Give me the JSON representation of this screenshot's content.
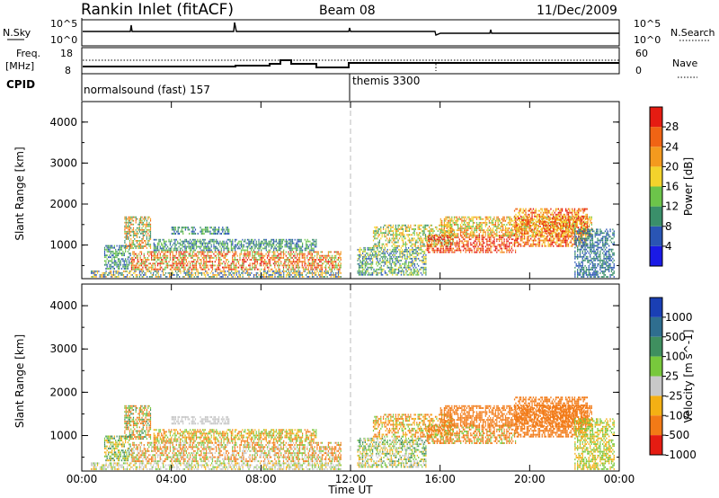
{
  "header": {
    "station": "Rankin Inlet (fitACF)",
    "beam": "Beam 08",
    "date": "11/Dec/2009"
  },
  "noise_panel": {
    "left_label": "N.Sky",
    "right_label": "N.Search",
    "left_ticks": [
      "10^5",
      "10^0"
    ],
    "right_ticks": [
      "10^5",
      "10^0"
    ]
  },
  "freq_panel": {
    "left_label_1": "Freq.",
    "left_label_2": "[MHz]",
    "right_label": "Nave",
    "left_ticks": [
      "18",
      "8"
    ],
    "right_ticks": [
      "60",
      "0"
    ]
  },
  "cpid_panel": {
    "label": "CPID",
    "programs": [
      "normalsound (fast) 157",
      "themis 3300"
    ]
  },
  "x_axis": {
    "label": "Time UT",
    "ticks": [
      "00:00",
      "04:00",
      "08:00",
      "12:00",
      "16:00",
      "20:00",
      "00:00"
    ]
  },
  "chart_data": [
    {
      "type": "heatmap",
      "title": "",
      "xlabel": "",
      "ylabel": "Slant Range [km]",
      "xlim": [
        0,
        24
      ],
      "ylim": [
        180,
        4500
      ],
      "yticks": [
        "1000",
        "2000",
        "3000",
        "4000"
      ],
      "colorbar_label": "Power [dB]",
      "colorbar_ticks": [
        "4",
        "8",
        "12",
        "16",
        "20",
        "24",
        "28"
      ],
      "colors": [
        "#1a1ae6",
        "#2a55b4",
        "#3a8f6a",
        "#6cc44a",
        "#f3d32c",
        "#f49a1e",
        "#f06414",
        "#e51c12"
      ],
      "levels": [
        0,
        4,
        8,
        12,
        16,
        20,
        24,
        28,
        32
      ],
      "regions": [
        {
          "t0": 0.4,
          "t1": 11.6,
          "r0": 200,
          "r1": 380,
          "values": [
            6,
            10,
            16,
            20
          ]
        },
        {
          "t0": 1.0,
          "t1": 2.2,
          "r0": 400,
          "r1": 1000,
          "values": [
            4,
            8,
            12
          ]
        },
        {
          "t0": 1.9,
          "t1": 3.1,
          "r0": 900,
          "r1": 1700,
          "values": [
            8,
            14,
            20,
            24
          ]
        },
        {
          "t0": 2.2,
          "t1": 11.6,
          "r0": 380,
          "r1": 850,
          "values": [
            14,
            20,
            24,
            28
          ]
        },
        {
          "t0": 3.2,
          "t1": 10.5,
          "r0": 850,
          "r1": 1150,
          "values": [
            4,
            8,
            12
          ]
        },
        {
          "t0": 4.0,
          "t1": 6.6,
          "r0": 1250,
          "r1": 1450,
          "values": [
            4,
            8,
            12
          ]
        },
        {
          "t0": 12.3,
          "t1": 15.4,
          "r0": 250,
          "r1": 950,
          "values": [
            4,
            8,
            12,
            16
          ]
        },
        {
          "t0": 13.0,
          "t1": 16.6,
          "r0": 950,
          "r1": 1500,
          "values": [
            8,
            12,
            16,
            20
          ]
        },
        {
          "t0": 15.4,
          "t1": 19.4,
          "r0": 800,
          "r1": 1250,
          "values": [
            28,
            28,
            24,
            20
          ]
        },
        {
          "t0": 16.0,
          "t1": 22.8,
          "r0": 1200,
          "r1": 1700,
          "values": [
            12,
            16,
            20,
            24
          ]
        },
        {
          "t0": 19.3,
          "t1": 22.6,
          "r0": 950,
          "r1": 1900,
          "values": [
            24,
            28,
            20,
            16
          ]
        },
        {
          "t0": 22.0,
          "t1": 23.8,
          "r0": 200,
          "r1": 1400,
          "values": [
            4,
            8
          ]
        }
      ]
    },
    {
      "type": "heatmap",
      "title": "",
      "xlabel": "Time UT",
      "ylabel": "Slant Range [km]",
      "xlim": [
        0,
        24
      ],
      "ylim": [
        180,
        4500
      ],
      "yticks": [
        "1000",
        "2000",
        "3000",
        "4000"
      ],
      "colorbar_label": "Velocity [m s^-1]",
      "colorbar_ticks": [
        "1000",
        "500",
        "100",
        "25",
        "-25",
        "-100",
        "-500",
        "-1000"
      ],
      "colors": [
        "#1a3fb4",
        "#2f6e8f",
        "#3f8f5f",
        "#78c83c",
        "#c8c8c8",
        "#f4b014",
        "#f27a16",
        "#e51c12"
      ],
      "levels": [
        1500,
        1000,
        500,
        100,
        25,
        -25,
        -100,
        -500,
        -1500
      ],
      "regions": [
        {
          "t0": 0.4,
          "t1": 11.6,
          "r0": 200,
          "r1": 380,
          "values": [
            0,
            10,
            -50,
            50
          ]
        },
        {
          "t0": 1.0,
          "t1": 2.2,
          "r0": 400,
          "r1": 1000,
          "values": [
            150,
            60,
            -40
          ]
        },
        {
          "t0": 1.9,
          "t1": 3.1,
          "r0": 900,
          "r1": 1700,
          "values": [
            -300,
            -150,
            60,
            200
          ]
        },
        {
          "t0": 2.2,
          "t1": 11.6,
          "r0": 380,
          "r1": 850,
          "values": [
            -200,
            -150,
            60,
            0
          ]
        },
        {
          "t0": 3.2,
          "t1": 10.5,
          "r0": 850,
          "r1": 1150,
          "values": [
            -60,
            60,
            -150
          ]
        },
        {
          "t0": 4.0,
          "t1": 6.6,
          "r0": 1250,
          "r1": 1450,
          "values": [
            0,
            10,
            -10
          ]
        },
        {
          "t0": 12.3,
          "t1": 15.4,
          "r0": 250,
          "r1": 950,
          "values": [
            60,
            -60,
            0,
            150
          ]
        },
        {
          "t0": 13.0,
          "t1": 16.6,
          "r0": 950,
          "r1": 1500,
          "values": [
            -150,
            -60,
            60,
            -200
          ]
        },
        {
          "t0": 15.4,
          "t1": 19.4,
          "r0": 800,
          "r1": 1250,
          "values": [
            -200,
            -150,
            -300,
            60
          ]
        },
        {
          "t0": 16.0,
          "t1": 22.8,
          "r0": 1200,
          "r1": 1700,
          "values": [
            -200,
            -300,
            -150,
            -150
          ]
        },
        {
          "t0": 19.3,
          "t1": 22.6,
          "r0": 950,
          "r1": 1900,
          "values": [
            -200,
            -300,
            -150,
            -250
          ]
        },
        {
          "t0": 22.0,
          "t1": 23.8,
          "r0": 200,
          "r1": 1400,
          "values": [
            -60,
            60
          ]
        }
      ]
    }
  ]
}
